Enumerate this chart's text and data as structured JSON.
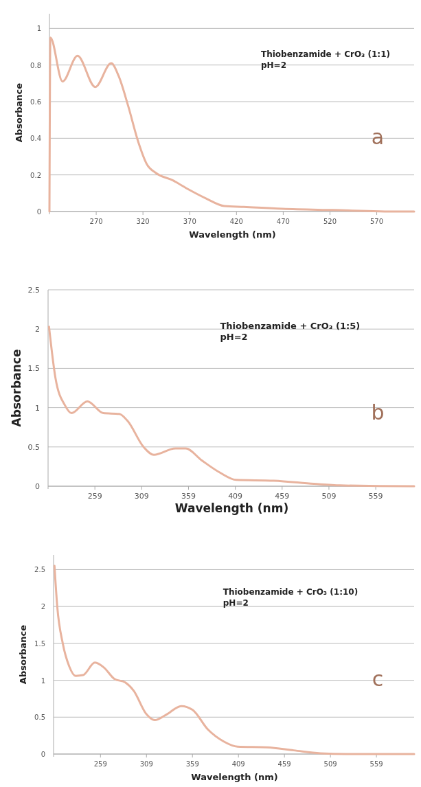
{
  "chart_data": [
    {
      "type": "line",
      "xlabel": "Wavelength (nm)",
      "ylabel": "Absorbance",
      "xlim": [
        220,
        610
      ],
      "ylim": [
        0,
        1.08
      ],
      "xticks": [
        270,
        320,
        370,
        420,
        470,
        520,
        570
      ],
      "yticks": [
        0,
        0.2,
        0.4,
        0.6,
        0.8,
        1
      ],
      "grid": "y",
      "annotations": [
        "Thiobenzamide + CrO₃ (1:1)",
        "pH=2",
        "a"
      ],
      "series": [
        {
          "color": "#e8b39e",
          "x": [
            220,
            221,
            234,
            250,
            269,
            286,
            294,
            304,
            315,
            324,
            334,
            352,
            369,
            388,
            407,
            428,
            469,
            523,
            593,
            610
          ],
          "values": [
            0,
            0.95,
            0.71,
            0.85,
            0.68,
            0.81,
            0.74,
            0.58,
            0.38,
            0.26,
            0.21,
            0.17,
            0.12,
            0.07,
            0.03,
            0.025,
            0.015,
            0.008,
            0,
            0
          ]
        }
      ]
    },
    {
      "type": "line",
      "xlabel": "Wavelength (nm)",
      "ylabel": "Absorbance",
      "xlim": [
        209,
        600
      ],
      "ylim": [
        0,
        2.5
      ],
      "xticks": [
        259,
        309,
        359,
        409,
        459,
        509,
        559
      ],
      "yticks": [
        0,
        0.5,
        1,
        1.5,
        2,
        2.5
      ],
      "grid": "y",
      "annotations": [
        "Thiobenzamide + CrO₃ (1:5)",
        "pH=2",
        "b"
      ],
      "series": [
        {
          "color": "#e8b39e",
          "x": [
            210,
            217,
            227,
            234,
            251,
            268,
            285,
            294,
            311,
            322,
            345,
            356,
            373,
            393,
            410,
            450,
            493,
            521,
            596,
            600
          ],
          "values": [
            2.03,
            1.37,
            1.03,
            0.93,
            1.08,
            0.93,
            0.92,
            0.83,
            0.5,
            0.4,
            0.48,
            0.48,
            0.33,
            0.17,
            0.08,
            0.07,
            0.03,
            0.01,
            0,
            0
          ]
        }
      ]
    },
    {
      "type": "line",
      "xlabel": "Wavelength (nm)",
      "ylabel": "Absorbance",
      "xlim": [
        208,
        600
      ],
      "ylim": [
        0,
        2.7
      ],
      "xticks": [
        259,
        309,
        359,
        409,
        459,
        509,
        559
      ],
      "yticks": [
        0,
        0.5,
        1,
        1.5,
        2,
        2.5
      ],
      "grid": "y",
      "annotations": [
        "Thiobenzamide + CrO₃ (1:10)",
        "pH=2",
        "c"
      ],
      "series": [
        {
          "color": "#e8b39e",
          "x": [
            209,
            212,
            218,
            225,
            232,
            240,
            253,
            263,
            274,
            286,
            295,
            309,
            318,
            330,
            347,
            359,
            376,
            393,
            408,
            440,
            469,
            498,
            527,
            600
          ],
          "values": [
            2.55,
            2.0,
            1.5,
            1.19,
            1.06,
            1.07,
            1.24,
            1.17,
            1.02,
            0.97,
            0.86,
            0.54,
            0.46,
            0.53,
            0.65,
            0.6,
            0.33,
            0.17,
            0.1,
            0.09,
            0.05,
            0.01,
            0,
            0
          ]
        }
      ]
    }
  ]
}
